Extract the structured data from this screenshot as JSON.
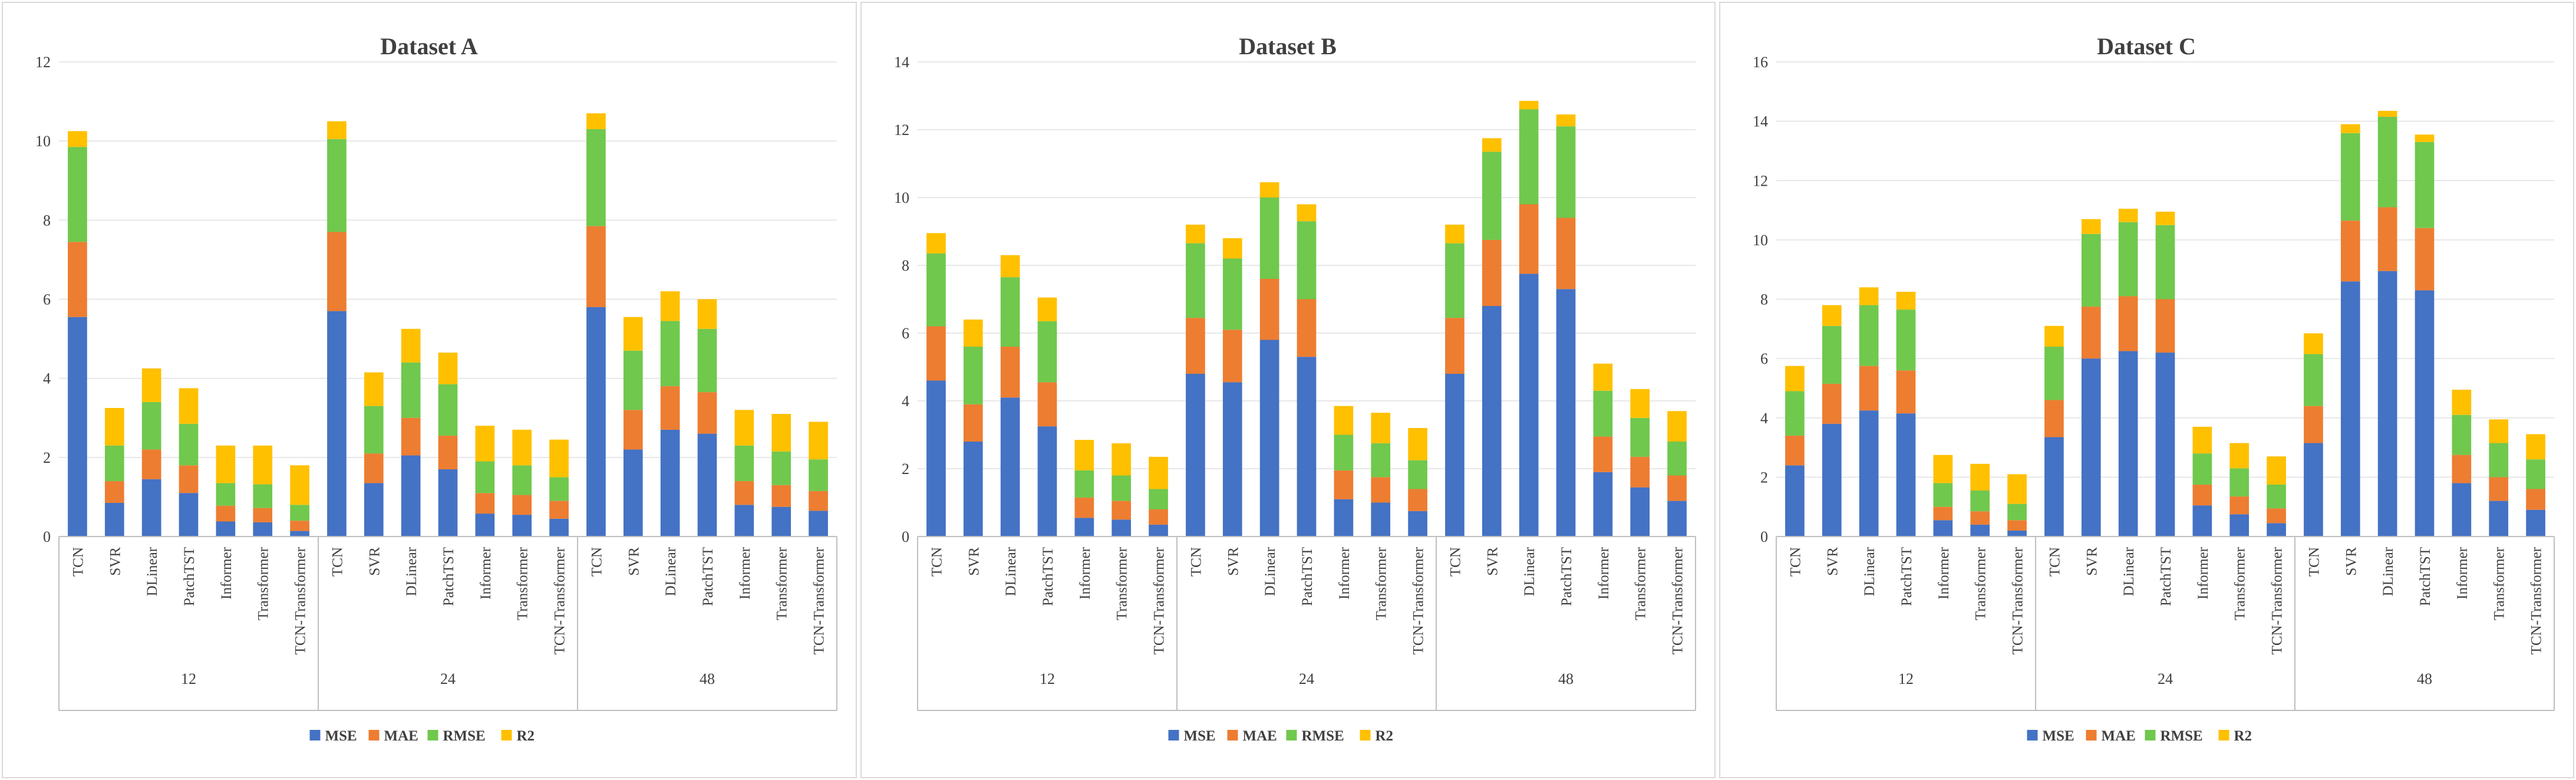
{
  "chart_data": [
    {
      "type": "bar",
      "stacked": true,
      "title": "Dataset A",
      "ylim": [
        0,
        12
      ],
      "yticks": [
        0,
        2,
        4,
        6,
        8,
        10,
        12
      ],
      "groups": [
        "12",
        "24",
        "48"
      ],
      "models": [
        "TCN",
        "SVR",
        "DLinear",
        "PatchTST",
        "Informer",
        "Transformer",
        "TCN-Transformer"
      ],
      "series": [
        {
          "name": "MSE",
          "color": "#4472c4",
          "values": [
            5.55,
            0.85,
            1.45,
            1.1,
            0.38,
            0.36,
            0.14,
            5.7,
            1.35,
            2.05,
            1.7,
            0.58,
            0.55,
            0.45,
            5.8,
            2.2,
            2.7,
            2.6,
            0.8,
            0.75,
            0.65
          ]
        },
        {
          "name": "MAE",
          "color": "#ed7d31",
          "values": [
            1.9,
            0.55,
            0.75,
            0.7,
            0.4,
            0.36,
            0.26,
            2.0,
            0.75,
            0.95,
            0.85,
            0.52,
            0.5,
            0.45,
            2.05,
            1.0,
            1.1,
            1.05,
            0.6,
            0.55,
            0.5
          ]
        },
        {
          "name": "RMSE",
          "color": "#70c84d",
          "values": [
            2.4,
            0.9,
            1.2,
            1.05,
            0.57,
            0.6,
            0.4,
            2.35,
            1.2,
            1.4,
            1.3,
            0.8,
            0.75,
            0.6,
            2.45,
            1.5,
            1.65,
            1.6,
            0.9,
            0.85,
            0.8
          ]
        },
        {
          "name": "R2",
          "color": "#ffc000",
          "values": [
            0.4,
            0.95,
            0.85,
            0.9,
            0.95,
            0.98,
            1.0,
            0.45,
            0.85,
            0.85,
            0.8,
            0.9,
            0.9,
            0.95,
            0.4,
            0.85,
            0.75,
            0.75,
            0.9,
            0.95,
            0.95
          ]
        }
      ]
    },
    {
      "type": "bar",
      "stacked": true,
      "title": "Dataset B",
      "ylim": [
        0,
        14
      ],
      "yticks": [
        0,
        2,
        4,
        6,
        8,
        10,
        12,
        14
      ],
      "groups": [
        "12",
        "24",
        "48"
      ],
      "models": [
        "TCN",
        "SVR",
        "DLinear",
        "PatchTST",
        "Informer",
        "Transformer",
        "TCN-Transformer"
      ],
      "series": [
        {
          "name": "MSE",
          "color": "#4472c4",
          "values": [
            4.6,
            2.8,
            4.1,
            3.25,
            0.55,
            0.5,
            0.35,
            4.8,
            4.55,
            5.8,
            5.3,
            1.1,
            1.0,
            0.75,
            4.8,
            6.8,
            7.75,
            7.3,
            1.9,
            1.45,
            1.05
          ]
        },
        {
          "name": "MAE",
          "color": "#ed7d31",
          "values": [
            1.6,
            1.1,
            1.5,
            1.3,
            0.6,
            0.55,
            0.45,
            1.65,
            1.55,
            1.8,
            1.7,
            0.85,
            0.75,
            0.65,
            1.65,
            1.95,
            2.05,
            2.1,
            1.05,
            0.9,
            0.75
          ]
        },
        {
          "name": "RMSE",
          "color": "#70c84d",
          "values": [
            2.15,
            1.7,
            2.05,
            1.8,
            0.8,
            0.75,
            0.6,
            2.2,
            2.1,
            2.4,
            2.3,
            1.05,
            1.0,
            0.85,
            2.2,
            2.6,
            2.8,
            2.7,
            1.35,
            1.15,
            1.0
          ]
        },
        {
          "name": "R2",
          "color": "#ffc000",
          "values": [
            0.6,
            0.8,
            0.65,
            0.7,
            0.9,
            0.95,
            0.95,
            0.55,
            0.6,
            0.45,
            0.5,
            0.85,
            0.9,
            0.95,
            0.55,
            0.4,
            0.25,
            0.35,
            0.8,
            0.85,
            0.9
          ]
        }
      ]
    },
    {
      "type": "bar",
      "stacked": true,
      "title": "Dataset C",
      "ylim": [
        0,
        16
      ],
      "yticks": [
        0,
        2,
        4,
        6,
        8,
        10,
        12,
        14,
        16
      ],
      "groups": [
        "12",
        "24",
        "48"
      ],
      "models": [
        "TCN",
        "SVR",
        "DLinear",
        "PatchTST",
        "Informer",
        "Transformer",
        "TCN-Transformer"
      ],
      "series": [
        {
          "name": "MSE",
          "color": "#4472c4",
          "values": [
            2.4,
            3.8,
            4.25,
            4.15,
            0.55,
            0.4,
            0.2,
            3.35,
            6.0,
            6.25,
            6.2,
            1.05,
            0.75,
            0.45,
            3.15,
            8.6,
            8.95,
            8.3,
            1.8,
            1.2,
            0.9
          ]
        },
        {
          "name": "MAE",
          "color": "#ed7d31",
          "values": [
            1.0,
            1.35,
            1.5,
            1.45,
            0.45,
            0.45,
            0.35,
            1.25,
            1.75,
            1.85,
            1.8,
            0.7,
            0.6,
            0.5,
            1.25,
            2.05,
            2.15,
            2.1,
            0.95,
            0.8,
            0.7
          ]
        },
        {
          "name": "RMSE",
          "color": "#70c84d",
          "values": [
            1.5,
            1.95,
            2.05,
            2.05,
            0.8,
            0.7,
            0.55,
            1.8,
            2.45,
            2.5,
            2.5,
            1.05,
            0.95,
            0.8,
            1.75,
            2.95,
            3.05,
            2.9,
            1.35,
            1.15,
            1.0
          ]
        },
        {
          "name": "R2",
          "color": "#ffc000",
          "values": [
            0.85,
            0.7,
            0.6,
            0.6,
            0.95,
            0.9,
            1.0,
            0.7,
            0.5,
            0.45,
            0.45,
            0.9,
            0.85,
            0.95,
            0.7,
            0.3,
            0.2,
            0.25,
            0.85,
            0.8,
            0.85
          ]
        }
      ]
    }
  ]
}
